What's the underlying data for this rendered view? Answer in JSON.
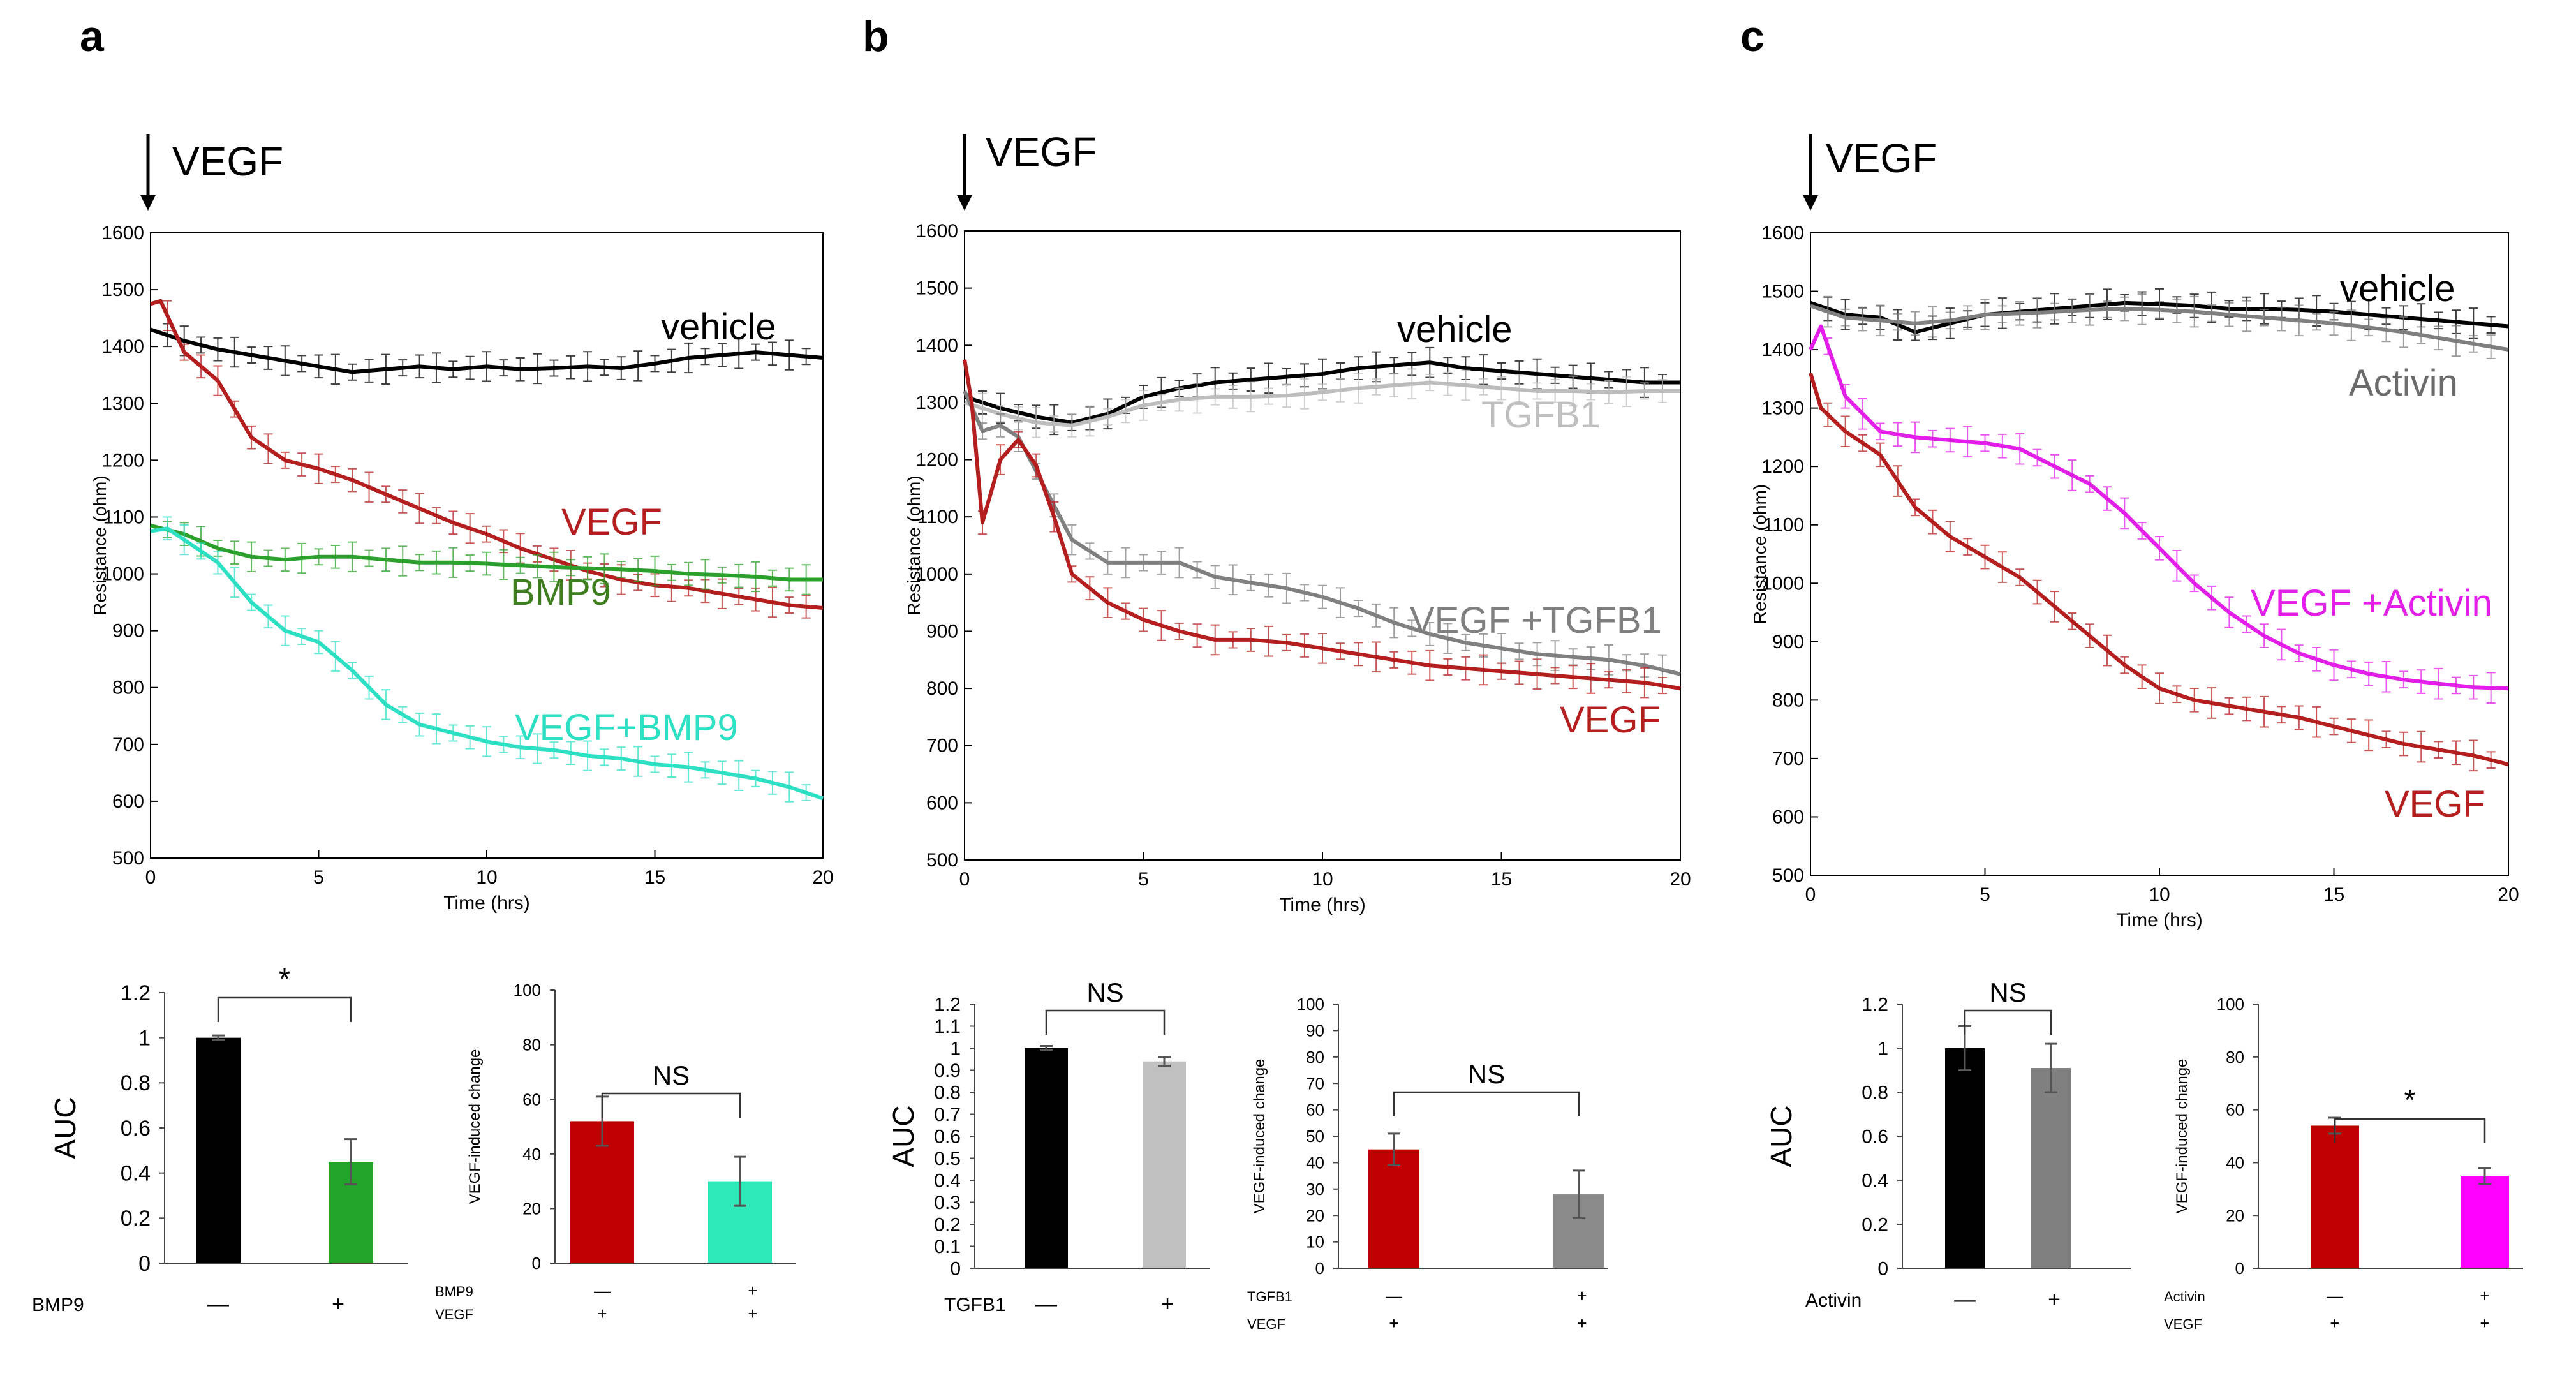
{
  "figure": {
    "panels": [
      {
        "letter": "a",
        "arrow_label": "VEGF"
      },
      {
        "letter": "b",
        "arrow_label": "VEGF"
      },
      {
        "letter": "c",
        "arrow_label": "VEGF"
      }
    ]
  },
  "chart_data": [
    {
      "id": "a-line",
      "type": "line",
      "panel": "a",
      "xlabel": "Time (hrs)",
      "ylabel": "Resistance (ohm)",
      "xlim": [
        0,
        20
      ],
      "ylim": [
        500,
        1600
      ],
      "xticks": [
        0,
        5,
        10,
        15,
        20
      ],
      "yticks": [
        500,
        600,
        700,
        800,
        900,
        1000,
        1100,
        1200,
        1300,
        1400,
        1500,
        1600
      ],
      "series": [
        {
          "name": "vehicle",
          "color": "#000000",
          "x": [
            0,
            1,
            2,
            3,
            4,
            5,
            6,
            7,
            8,
            9,
            10,
            11,
            12,
            13,
            14,
            15,
            16,
            17,
            18,
            19,
            20
          ],
          "values": [
            1430,
            1410,
            1395,
            1385,
            1375,
            1365,
            1355,
            1360,
            1365,
            1360,
            1365,
            1360,
            1362,
            1365,
            1362,
            1370,
            1380,
            1385,
            1390,
            1385,
            1380
          ]
        },
        {
          "name": "VEGF",
          "color": "#b41e1e",
          "x": [
            0,
            0.3,
            1,
            2,
            3,
            4,
            5,
            6,
            7,
            8,
            9,
            10,
            11,
            12,
            13,
            14,
            15,
            16,
            17,
            18,
            19,
            20
          ],
          "values": [
            1475,
            1480,
            1390,
            1340,
            1240,
            1200,
            1185,
            1165,
            1140,
            1115,
            1090,
            1070,
            1045,
            1025,
            1005,
            990,
            980,
            975,
            965,
            955,
            945,
            940
          ]
        },
        {
          "name": "BMP9",
          "color": "#2ca02c",
          "x": [
            0,
            1,
            2,
            3,
            4,
            5,
            6,
            7,
            8,
            9,
            10,
            11,
            12,
            13,
            14,
            15,
            16,
            17,
            18,
            19,
            20
          ],
          "values": [
            1085,
            1070,
            1045,
            1030,
            1025,
            1030,
            1030,
            1025,
            1020,
            1020,
            1018,
            1015,
            1012,
            1010,
            1008,
            1005,
            1000,
            998,
            995,
            990,
            990
          ]
        },
        {
          "name": "VEGF+BMP9",
          "color": "#2de0c4",
          "x": [
            0,
            0.5,
            1,
            2,
            3,
            4,
            5,
            6,
            7,
            8,
            9,
            10,
            11,
            12,
            13,
            14,
            15,
            16,
            17,
            18,
            19,
            20
          ],
          "values": [
            1075,
            1080,
            1060,
            1020,
            950,
            900,
            880,
            830,
            770,
            735,
            720,
            705,
            695,
            690,
            680,
            675,
            665,
            660,
            650,
            640,
            625,
            605
          ]
        }
      ],
      "annotations": [
        "vehicle",
        "VEGF",
        "BMP9",
        "VEGF+BMP9"
      ]
    },
    {
      "id": "b-line",
      "type": "line",
      "panel": "b",
      "xlabel": "Time (hrs)",
      "ylabel": "Resistance (ohm)",
      "xlim": [
        0,
        20
      ],
      "ylim": [
        500,
        1600
      ],
      "xticks": [
        0,
        5,
        10,
        15,
        20
      ],
      "yticks": [
        500,
        600,
        700,
        800,
        900,
        1000,
        1100,
        1200,
        1300,
        1400,
        1500,
        1600
      ],
      "series": [
        {
          "name": "vehicle",
          "color": "#000000",
          "x": [
            0,
            1,
            2,
            3,
            4,
            5,
            6,
            7,
            8,
            9,
            10,
            11,
            12,
            13,
            14,
            15,
            16,
            17,
            18,
            19,
            20
          ],
          "values": [
            1310,
            1290,
            1275,
            1265,
            1280,
            1310,
            1325,
            1335,
            1340,
            1345,
            1350,
            1360,
            1365,
            1370,
            1360,
            1355,
            1350,
            1345,
            1340,
            1335,
            1335
          ]
        },
        {
          "name": "TGFB1",
          "color": "#bdbdbd",
          "x": [
            0,
            1,
            2,
            3,
            4,
            5,
            6,
            7,
            8,
            9,
            10,
            11,
            12,
            13,
            14,
            15,
            16,
            17,
            18,
            19,
            20
          ],
          "values": [
            1300,
            1280,
            1265,
            1260,
            1275,
            1295,
            1305,
            1310,
            1310,
            1312,
            1318,
            1325,
            1330,
            1335,
            1330,
            1325,
            1320,
            1320,
            1318,
            1320,
            1320
          ]
        },
        {
          "name": "VEGF +TGFB1",
          "color": "#808080",
          "x": [
            0,
            0.5,
            1,
            1.5,
            2,
            3,
            4,
            5,
            6,
            7,
            8,
            9,
            10,
            11,
            12,
            13,
            14,
            15,
            16,
            17,
            18,
            19,
            20
          ],
          "values": [
            1320,
            1250,
            1260,
            1240,
            1180,
            1060,
            1020,
            1020,
            1020,
            995,
            985,
            975,
            960,
            940,
            915,
            895,
            880,
            870,
            860,
            855,
            850,
            840,
            825
          ]
        },
        {
          "name": "VEGF",
          "color": "#b41e1e",
          "x": [
            0,
            0.2,
            0.5,
            1,
            1.5,
            2,
            2.5,
            3,
            4,
            5,
            6,
            7,
            8,
            9,
            10,
            11,
            12,
            13,
            14,
            15,
            16,
            17,
            18,
            19,
            20
          ],
          "values": [
            1375,
            1300,
            1090,
            1200,
            1235,
            1190,
            1100,
            1000,
            950,
            920,
            900,
            885,
            885,
            880,
            870,
            860,
            850,
            840,
            835,
            830,
            825,
            820,
            815,
            810,
            800
          ]
        }
      ],
      "annotations": [
        "vehicle",
        "TGFB1",
        "VEGF +TGFB1",
        "VEGF"
      ]
    },
    {
      "id": "c-line",
      "type": "line",
      "panel": "c",
      "xlabel": "Time (hrs)",
      "ylabel": "Resistance (ohm)",
      "xlim": [
        0,
        20
      ],
      "ylim": [
        500,
        1600
      ],
      "xticks": [
        0,
        5,
        10,
        15,
        20
      ],
      "yticks": [
        500,
        600,
        700,
        800,
        900,
        1000,
        1100,
        1200,
        1300,
        1400,
        1500,
        1600
      ],
      "series": [
        {
          "name": "vehicle",
          "color": "#000000",
          "x": [
            0,
            1,
            2,
            3,
            4,
            5,
            6,
            7,
            8,
            9,
            10,
            11,
            12,
            13,
            14,
            15,
            16,
            17,
            18,
            19,
            20
          ],
          "values": [
            1480,
            1460,
            1455,
            1430,
            1445,
            1460,
            1465,
            1470,
            1475,
            1480,
            1478,
            1475,
            1470,
            1470,
            1468,
            1465,
            1460,
            1455,
            1450,
            1445,
            1440
          ]
        },
        {
          "name": "Activin",
          "color": "#7f7f7f",
          "x": [
            0,
            1,
            2,
            3,
            4,
            5,
            6,
            7,
            8,
            9,
            10,
            11,
            12,
            13,
            14,
            15,
            16,
            17,
            18,
            19,
            20
          ],
          "values": [
            1475,
            1455,
            1450,
            1445,
            1450,
            1460,
            1462,
            1465,
            1468,
            1470,
            1468,
            1465,
            1460,
            1455,
            1450,
            1445,
            1438,
            1430,
            1420,
            1410,
            1400
          ]
        },
        {
          "name": "VEGF +Activin",
          "color": "#e21ee8",
          "x": [
            0,
            0.3,
            1,
            2,
            3,
            4,
            5,
            6,
            7,
            8,
            9,
            10,
            11,
            12,
            13,
            14,
            15,
            16,
            17,
            18,
            19,
            20
          ],
          "values": [
            1400,
            1440,
            1320,
            1260,
            1250,
            1245,
            1240,
            1230,
            1200,
            1170,
            1120,
            1060,
            1000,
            950,
            910,
            880,
            860,
            845,
            835,
            828,
            822,
            820
          ]
        },
        {
          "name": "VEGF",
          "color": "#b41e1e",
          "x": [
            0,
            0.3,
            1,
            2,
            3,
            4,
            5,
            6,
            7,
            8,
            9,
            10,
            11,
            12,
            13,
            14,
            15,
            16,
            17,
            18,
            19,
            20
          ],
          "values": [
            1360,
            1300,
            1260,
            1220,
            1130,
            1080,
            1045,
            1010,
            960,
            910,
            860,
            820,
            800,
            790,
            780,
            770,
            755,
            740,
            725,
            715,
            705,
            690
          ]
        }
      ],
      "annotations": [
        "vehicle",
        "Activin",
        "VEGF +Activin",
        "VEGF"
      ]
    },
    {
      "id": "a-auc",
      "type": "bar",
      "panel": "a",
      "ylabel": "AUC",
      "ylim": [
        0,
        1.2
      ],
      "yticks": [
        "0",
        "0.2",
        "0.4",
        "0.6",
        "0.8",
        "1",
        "1.2"
      ],
      "row_labels": [
        "BMP9"
      ],
      "rows": [
        [
          "—",
          "+"
        ]
      ],
      "values": [
        1.0,
        0.45
      ],
      "errors": [
        0.01,
        0.1
      ],
      "colors": [
        "#000000",
        "#22a42a"
      ],
      "significance": "*"
    },
    {
      "id": "a-change",
      "type": "bar",
      "panel": "a",
      "ylabel": "VEGF-induced change",
      "ylim": [
        0,
        100
      ],
      "yticks": [
        "0",
        "20",
        "40",
        "60",
        "80",
        "100"
      ],
      "row_labels": [
        "BMP9",
        "VEGF"
      ],
      "rows": [
        [
          "—",
          "+"
        ],
        [
          "+",
          "+"
        ]
      ],
      "values": [
        52,
        30
      ],
      "errors": [
        9,
        9
      ],
      "colors": [
        "#c00000",
        "#2de8b8"
      ],
      "significance": "NS"
    },
    {
      "id": "b-auc",
      "type": "bar",
      "panel": "b",
      "ylabel": "AUC",
      "ylim": [
        0,
        1.2
      ],
      "yticks": [
        "0",
        "0.1",
        "0.2",
        "0.3",
        "0.4",
        "0.5",
        "0.6",
        "0.7",
        "0.8",
        "0.9",
        "1",
        "1.1",
        "1.2"
      ],
      "row_labels": [
        "TGFB1"
      ],
      "rows": [
        [
          "—",
          "+"
        ]
      ],
      "values": [
        1.0,
        0.94
      ],
      "errors": [
        0.01,
        0.02
      ],
      "colors": [
        "#000000",
        "#c0c0c0"
      ],
      "significance": "NS"
    },
    {
      "id": "b-change",
      "type": "bar",
      "panel": "b",
      "ylabel": "VEGF-induced change",
      "ylim": [
        0,
        100
      ],
      "yticks": [
        "0",
        "10",
        "20",
        "30",
        "40",
        "50",
        "60",
        "70",
        "80",
        "90",
        "100"
      ],
      "row_labels": [
        "TGFB1",
        "VEGF"
      ],
      "rows": [
        [
          "—",
          "+"
        ],
        [
          "+",
          "+"
        ]
      ],
      "values": [
        45,
        28
      ],
      "errors": [
        6,
        9
      ],
      "colors": [
        "#c00000",
        "#8a8a8a"
      ],
      "significance": "NS"
    },
    {
      "id": "c-auc",
      "type": "bar",
      "panel": "c",
      "ylabel": "AUC",
      "ylim": [
        0,
        1.2
      ],
      "yticks": [
        "0",
        "0.2",
        "0.4",
        "0.6",
        "0.8",
        "1",
        "1.2"
      ],
      "row_labels": [
        "Activin"
      ],
      "rows": [
        [
          "—",
          "+"
        ]
      ],
      "values": [
        1.0,
        0.91
      ],
      "errors": [
        0.1,
        0.11
      ],
      "colors": [
        "#000000",
        "#808080"
      ],
      "significance": "NS"
    },
    {
      "id": "c-change",
      "type": "bar",
      "panel": "c",
      "ylabel": "VEGF-induced change",
      "ylim": [
        0,
        100
      ],
      "yticks": [
        "0",
        "20",
        "40",
        "60",
        "80",
        "100"
      ],
      "row_labels": [
        "Activin",
        "VEGF"
      ],
      "rows": [
        [
          "—",
          "+"
        ],
        [
          "+",
          "+"
        ]
      ],
      "values": [
        54,
        35
      ],
      "errors": [
        3,
        3
      ],
      "colors": [
        "#c00000",
        "#ff00ff"
      ],
      "significance": "*"
    }
  ]
}
